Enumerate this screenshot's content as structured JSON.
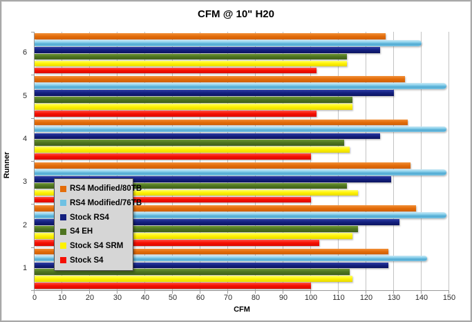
{
  "window": {
    "title": "CFM @ 10\" H20"
  },
  "axes": {
    "x_title": "CFM",
    "y_title": "Runner"
  },
  "chart_data": {
    "type": "bar",
    "orientation": "horizontal",
    "title": "CFM @ 10\" H20",
    "xlabel": "CFM",
    "ylabel": "Runner",
    "xlim": [
      0,
      150
    ],
    "xticks": [
      0,
      10,
      20,
      30,
      40,
      50,
      60,
      70,
      80,
      90,
      100,
      110,
      120,
      130,
      140,
      150
    ],
    "grid": true,
    "categories": [
      "1",
      "2",
      "3",
      "4",
      "5",
      "6"
    ],
    "row_order_top_to_bottom": [
      "6",
      "5",
      "4",
      "3",
      "2",
      "1"
    ],
    "legend_position": "middle-left",
    "legend_bg": "#d6d6d6",
    "series": [
      {
        "name": "RS4 Modified/80TB",
        "color": "#e36c09",
        "gradient": [
          "#f1913a",
          "#e36c09",
          "#cf5f07"
        ],
        "rounded_end": false,
        "values": [
          128,
          138,
          136,
          135,
          134,
          127
        ]
      },
      {
        "name": "RS4 Modified/76TB",
        "color": "#6fc1e3",
        "gradient": [
          "#c9e9f6",
          "#8ed2ec",
          "#4fa9d2",
          "#7cc4e4"
        ],
        "rounded_end": true,
        "values": [
          142,
          149,
          149,
          149,
          149,
          140
        ]
      },
      {
        "name": "Stock RS4",
        "color": "#14207e",
        "gradient": [
          "#2d3da6",
          "#14207e",
          "#0c1460"
        ],
        "rounded_end": false,
        "values": [
          128,
          132,
          129,
          125,
          130,
          125
        ]
      },
      {
        "name": "S4 EH",
        "color": "#4e7420",
        "gradient": [
          "#6d9734",
          "#4e7420",
          "#3f6018"
        ],
        "rounded_end": false,
        "values": [
          114,
          117,
          113,
          112,
          115,
          113
        ]
      },
      {
        "name": "Stock S4 SRM",
        "color": "#fff200",
        "gradient": [
          "#ffff6b",
          "#fff200",
          "#e5d800"
        ],
        "rounded_end": false,
        "values": [
          115,
          115,
          117,
          114,
          115,
          113
        ]
      },
      {
        "name": "Stock S4",
        "color": "#f50f00",
        "gradient": [
          "#ff5042",
          "#f50f00",
          "#d90b00"
        ],
        "rounded_end": false,
        "values": [
          100,
          103,
          100,
          100,
          102,
          102
        ]
      }
    ]
  }
}
